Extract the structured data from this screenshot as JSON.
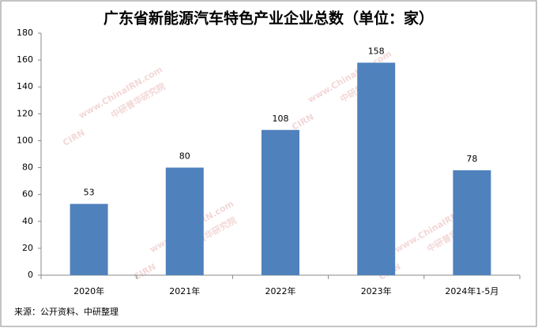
{
  "chart_data": {
    "type": "bar",
    "title": "广东省新能源汽车特色产业企业总数（单位：家）",
    "categories": [
      "2020年",
      "2021年",
      "2022年",
      "2023年",
      "2024年1-5月"
    ],
    "values": [
      53,
      80,
      108,
      158,
      78
    ],
    "color": "#4f81bd",
    "ylim": [
      0,
      180
    ],
    "yticks": [
      0,
      20,
      40,
      60,
      80,
      100,
      120,
      140,
      160,
      180
    ],
    "grid": false,
    "source": "来源：公开资料、中研整理",
    "watermark": [
      "www.ChinaIRN.com",
      "中研普华研究院",
      "CIRN"
    ]
  }
}
